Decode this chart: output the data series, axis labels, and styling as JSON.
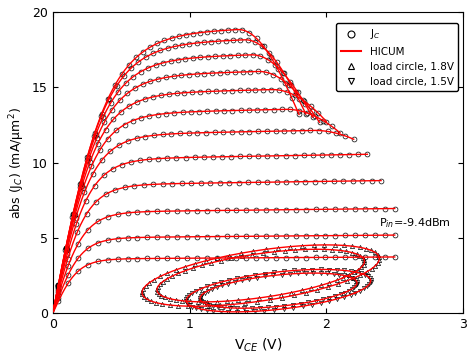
{
  "title": "",
  "xlabel": "V$_{CE}$ (V)",
  "ylabel": "abs (J$_C$) (mA/μm$^2$)",
  "xlim": [
    0,
    3
  ],
  "ylim": [
    0,
    20
  ],
  "xticks": [
    0,
    1,
    2,
    3
  ],
  "yticks": [
    0,
    5,
    10,
    15,
    20
  ],
  "dc_curve_levels": [
    3.6,
    5.0,
    6.7,
    8.5,
    10.2,
    11.8,
    13.2,
    14.5,
    15.7,
    16.8,
    17.8,
    18.5
  ],
  "background_color": "#ffffff",
  "curve_color": "#ff0000",
  "data_color": "#000000",
  "pin_text": "P$_{in}$=-9.4dBm",
  "legend_entries": [
    "J$_C$",
    "HICUM",
    "load circle, 1.8V",
    "load circle, 1.5V"
  ],
  "knee_voltages": [
    0.18,
    0.2,
    0.22,
    0.24,
    0.26,
    0.28,
    0.3,
    0.32,
    0.34,
    0.36,
    0.38,
    0.4
  ],
  "kirk_onset": [
    99,
    99,
    99,
    99,
    99,
    1.9,
    1.7,
    1.6,
    1.5,
    1.45,
    1.4,
    1.35
  ],
  "kirk_strength": [
    0,
    0,
    0,
    0,
    0,
    0.6,
    0.8,
    1.0,
    1.2,
    1.4,
    1.6,
    1.8
  ],
  "vce_end": [
    2.5,
    2.5,
    2.5,
    2.4,
    2.3,
    2.2,
    2.1,
    2.0,
    1.95,
    1.9,
    1.85,
    1.8
  ]
}
